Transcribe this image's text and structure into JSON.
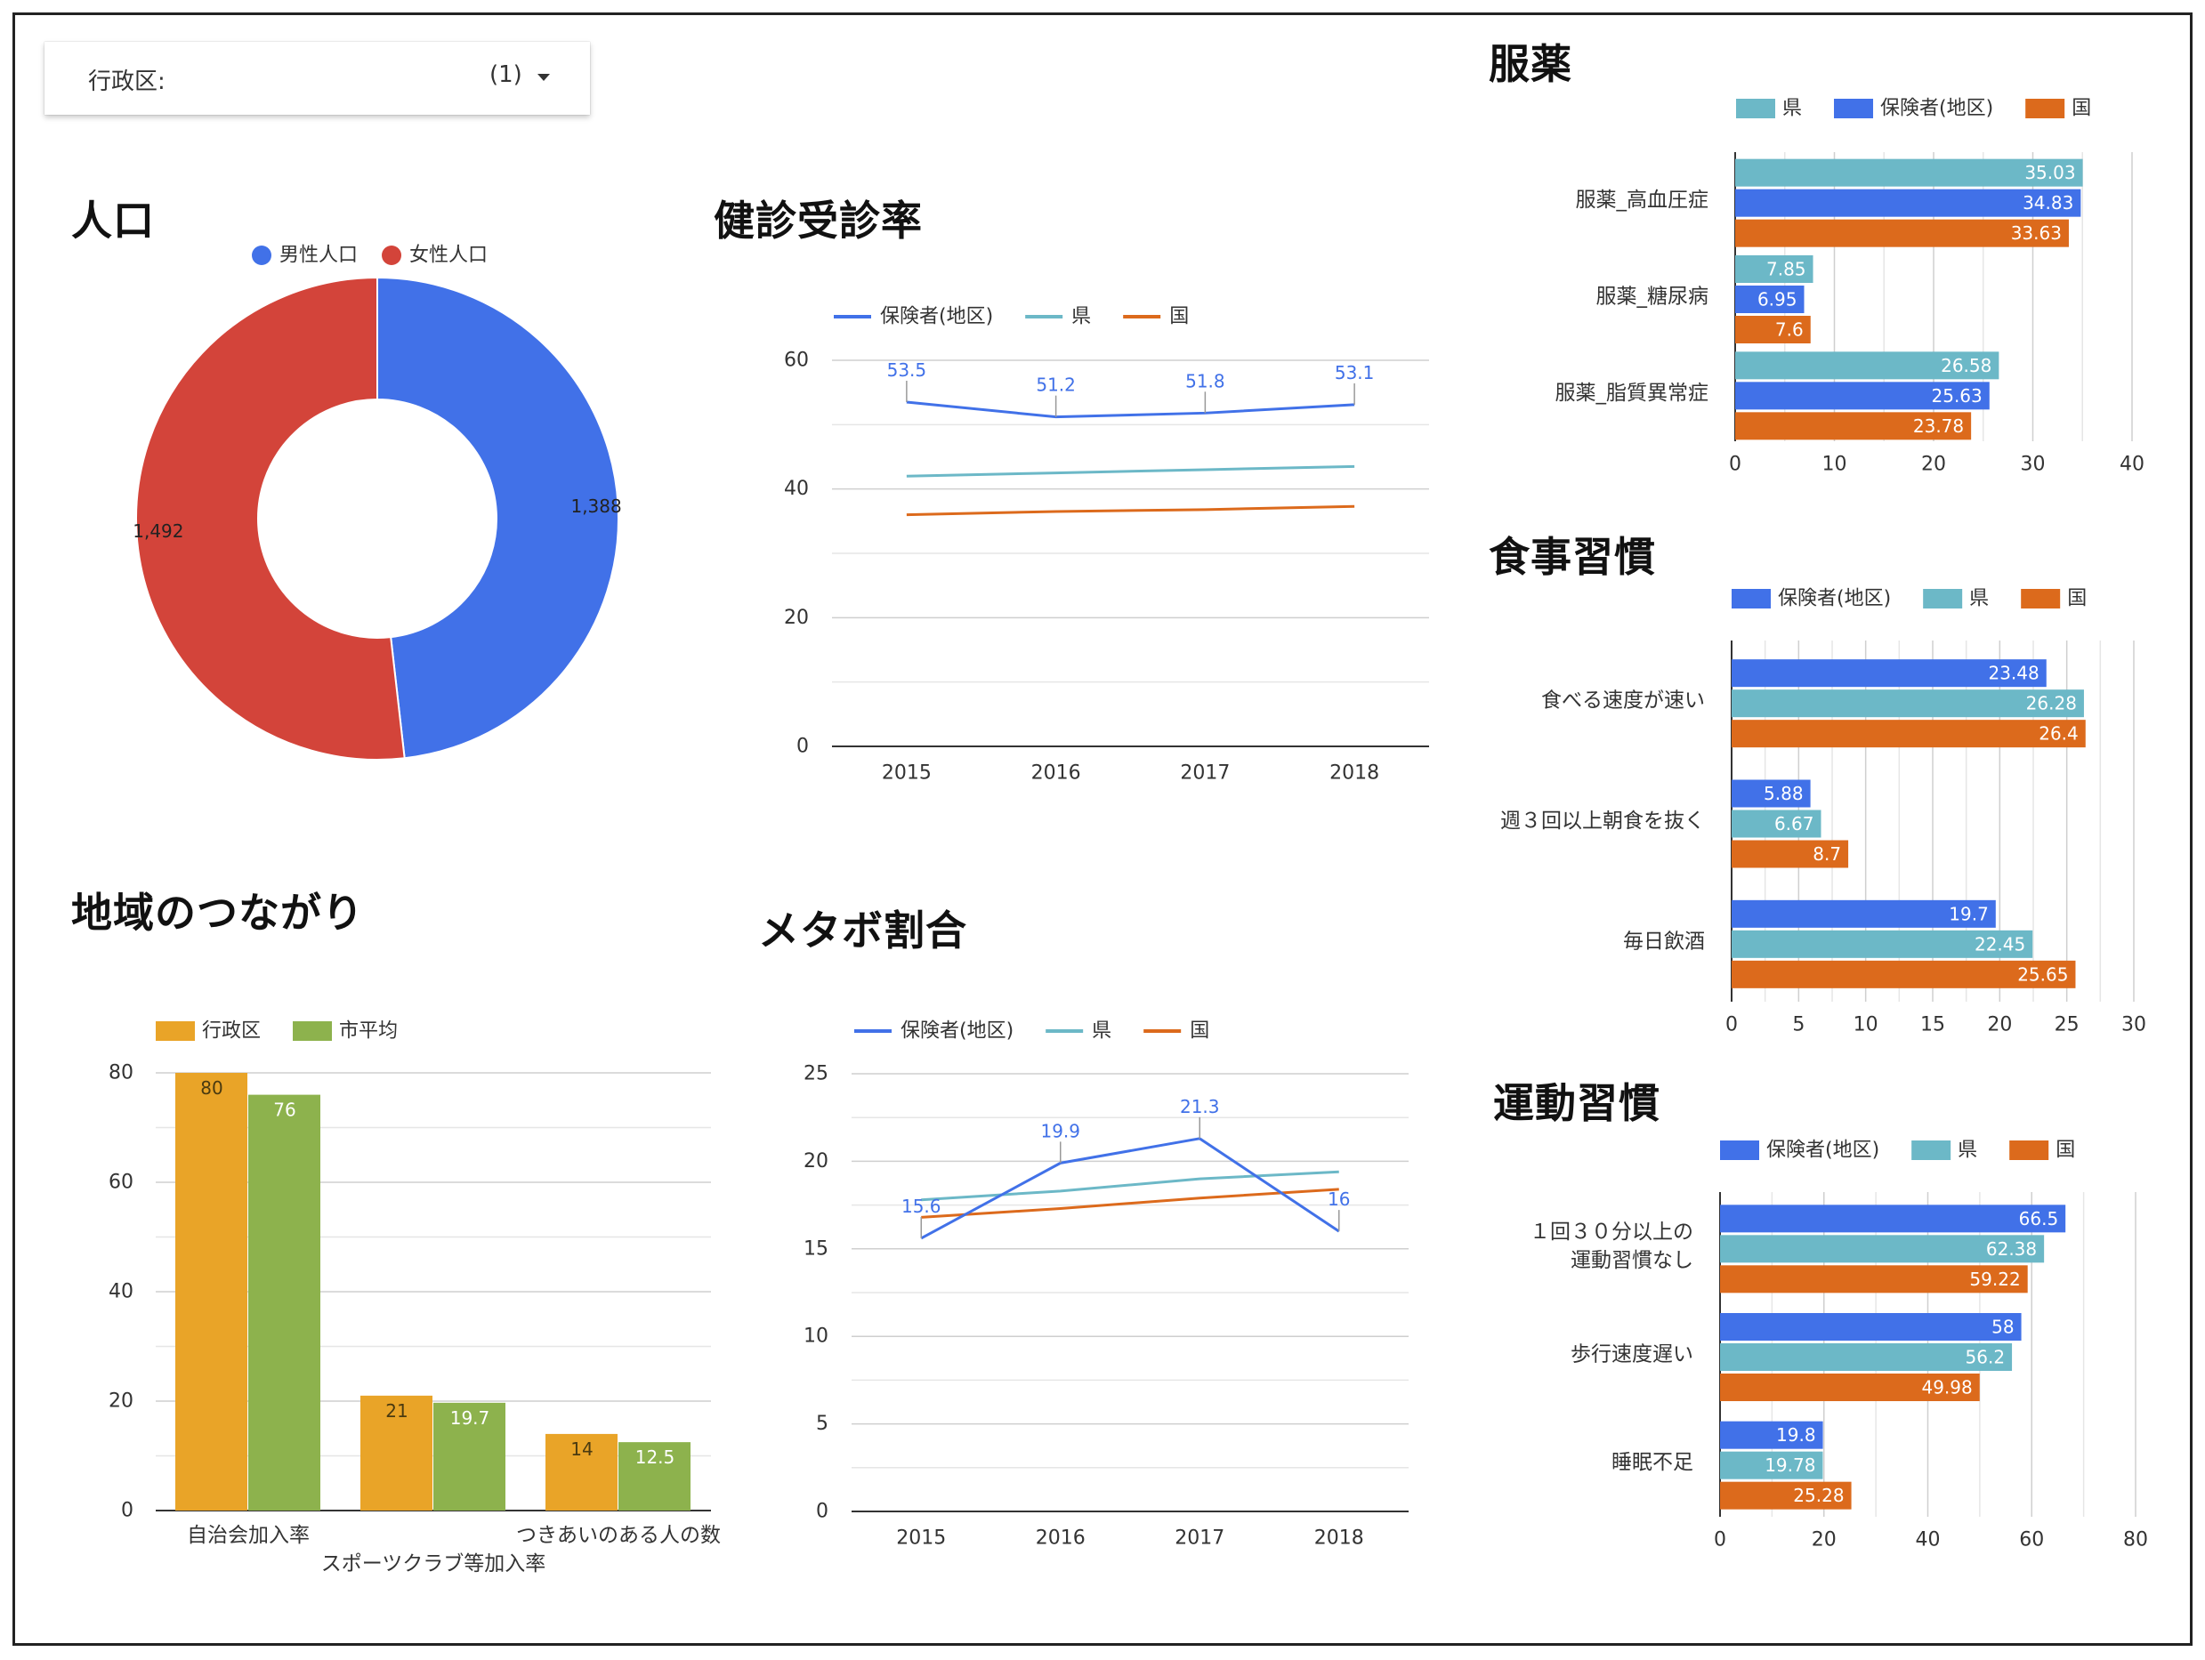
{
  "filter": {
    "label": "行政区:",
    "value": "(1)",
    "icon": "dropdown-arrow-icon"
  },
  "headings": {
    "population": "人口",
    "checkup": "健診受診率",
    "community": "地域のつながり",
    "metabo": "メタボ割合",
    "medication": "服薬",
    "diet": "食事習慣",
    "exercise": "運動習慣"
  },
  "colors": {
    "blue": "#4171e8",
    "red": "#d3443a",
    "teal": "#6cb8c7",
    "orange": "#dc6a1c",
    "gold": "#e9a428",
    "green": "#8db24d"
  },
  "chart_data": [
    {
      "id": "population",
      "type": "pie",
      "donut": true,
      "legend": [
        "男性人口",
        "女性人口"
      ],
      "legend_position": "top",
      "slices": [
        {
          "name": "男性人口",
          "value": 1388,
          "label": "1,388",
          "color": "#4171e8"
        },
        {
          "name": "女性人口",
          "value": 1492,
          "label": "1,492",
          "color": "#d3443a"
        }
      ]
    },
    {
      "id": "checkup",
      "type": "line",
      "x": [
        "2015",
        "2016",
        "2017",
        "2018"
      ],
      "ylim": [
        0,
        60
      ],
      "yticks": [
        "0",
        "20",
        "40",
        "60"
      ],
      "grid": true,
      "legend_position": "top",
      "series": [
        {
          "name": "保険者(地区)",
          "values": [
            53.5,
            51.2,
            51.8,
            53.1
          ],
          "labels": [
            "53.5",
            "51.2",
            "51.8",
            "53.1"
          ],
          "color": "#4171e8"
        },
        {
          "name": "県",
          "values": [
            42,
            42.5,
            43,
            43.5
          ],
          "color": "#6cb8c7"
        },
        {
          "name": "国",
          "values": [
            36,
            36.5,
            36.8,
            37.3
          ],
          "color": "#dc6a1c"
        }
      ]
    },
    {
      "id": "community",
      "type": "bar",
      "categories": [
        "自治会加入率",
        "スポーツクラブ等加入率",
        "つきあいのある人の数"
      ],
      "ylim": [
        0,
        80
      ],
      "yticks": [
        "0",
        "20",
        "40",
        "60",
        "80"
      ],
      "grid": true,
      "legend_position": "top",
      "series": [
        {
          "name": "行政区",
          "values": [
            80,
            21,
            14
          ],
          "labels": [
            "80",
            "21",
            "14"
          ],
          "color": "#e9a428"
        },
        {
          "name": "市平均",
          "values": [
            76,
            19.7,
            12.5
          ],
          "labels": [
            "76",
            "19.7",
            "12.5"
          ],
          "color": "#8db24d"
        }
      ]
    },
    {
      "id": "metabo",
      "type": "line",
      "x": [
        "2015",
        "2016",
        "2017",
        "2018"
      ],
      "ylim": [
        0,
        25
      ],
      "yticks": [
        "0",
        "5",
        "10",
        "15",
        "20",
        "25"
      ],
      "grid": true,
      "legend_position": "top",
      "series": [
        {
          "name": "保険者(地区)",
          "values": [
            15.6,
            19.9,
            21.3,
            16
          ],
          "labels": [
            "15.6",
            "19.9",
            "21.3",
            "16"
          ],
          "color": "#4171e8"
        },
        {
          "name": "県",
          "values": [
            17.8,
            18.3,
            19,
            19.4
          ],
          "color": "#6cb8c7"
        },
        {
          "name": "国",
          "values": [
            16.8,
            17.3,
            17.9,
            18.4
          ],
          "color": "#dc6a1c"
        }
      ]
    },
    {
      "id": "medication",
      "type": "bar",
      "orientation": "horizontal",
      "categories": [
        "服薬_高血圧症",
        "服薬_糖尿病",
        "服薬_脂質異常症"
      ],
      "xlim": [
        0,
        40
      ],
      "xticks": [
        "0",
        "10",
        "20",
        "30",
        "40"
      ],
      "grid": true,
      "legend_position": "top",
      "series": [
        {
          "name": "県",
          "values": [
            35.03,
            7.85,
            26.58
          ],
          "labels": [
            "35.03",
            "7.85",
            "26.58"
          ],
          "color": "#6cb8c7"
        },
        {
          "name": "保険者(地区)",
          "values": [
            34.83,
            6.95,
            25.63
          ],
          "labels": [
            "34.83",
            "6.95",
            "25.63"
          ],
          "color": "#4171e8"
        },
        {
          "name": "国",
          "values": [
            33.63,
            7.6,
            23.78
          ],
          "labels": [
            "33.63",
            "7.6",
            "23.78"
          ],
          "color": "#dc6a1c"
        }
      ]
    },
    {
      "id": "diet",
      "type": "bar",
      "orientation": "horizontal",
      "categories": [
        "食べる速度が速い",
        "週３回以上朝食を抜く",
        "毎日飲酒"
      ],
      "xlim": [
        0,
        30
      ],
      "xticks": [
        "0",
        "5",
        "10",
        "15",
        "20",
        "25",
        "30"
      ],
      "grid": true,
      "legend_position": "top",
      "series": [
        {
          "name": "保険者(地区)",
          "values": [
            23.48,
            5.88,
            19.7
          ],
          "labels": [
            "23.48",
            "5.88",
            "19.7"
          ],
          "color": "#4171e8"
        },
        {
          "name": "県",
          "values": [
            26.28,
            6.67,
            22.45
          ],
          "labels": [
            "26.28",
            "6.67",
            "22.45"
          ],
          "color": "#6cb8c7"
        },
        {
          "name": "国",
          "values": [
            26.4,
            8.7,
            25.65
          ],
          "labels": [
            "26.4",
            "8.7",
            "25.65"
          ],
          "color": "#dc6a1c"
        }
      ]
    },
    {
      "id": "exercise",
      "type": "bar",
      "orientation": "horizontal",
      "categories": [
        "１回３０分以上の\n運動習慣なし",
        "歩行速度遅い",
        "睡眠不足"
      ],
      "xlim": [
        0,
        80
      ],
      "xticks": [
        "0",
        "20",
        "40",
        "60",
        "80"
      ],
      "grid": true,
      "legend_position": "top",
      "series": [
        {
          "name": "保険者(地区)",
          "values": [
            66.5,
            58,
            19.8
          ],
          "labels": [
            "66.5",
            "58",
            "19.8"
          ],
          "color": "#4171e8"
        },
        {
          "name": "県",
          "values": [
            62.38,
            56.2,
            19.78
          ],
          "labels": [
            "62.38",
            "56.2",
            "19.78"
          ],
          "color": "#6cb8c7"
        },
        {
          "name": "国",
          "values": [
            59.22,
            49.98,
            25.28
          ],
          "labels": [
            "59.22",
            "49.98",
            "25.28"
          ],
          "color": "#dc6a1c"
        }
      ]
    }
  ]
}
